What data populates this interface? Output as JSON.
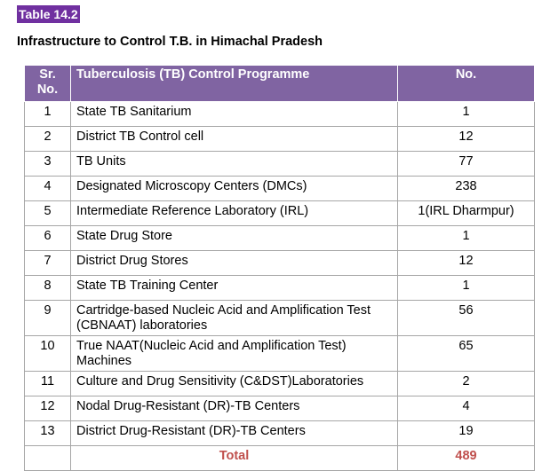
{
  "table_tag": "Table 14.2",
  "heading": "Infrastructure to Control T.B. in Himachal Pradesh",
  "columns": {
    "sr": "Sr.\nNo.",
    "programme": "Tuberculosis (TB) Control Programme",
    "no": "No."
  },
  "rows": [
    {
      "sr": "1",
      "name": "State TB Sanitarium",
      "no": "1"
    },
    {
      "sr": "2",
      "name": "District TB Control cell",
      "no": "12"
    },
    {
      "sr": "3",
      "name": "TB Units",
      "no": "77"
    },
    {
      "sr": "4",
      "name": "Designated Microscopy Centers (DMCs)",
      "no": "238"
    },
    {
      "sr": "5",
      "name": "Intermediate Reference Laboratory (IRL)",
      "no": "1(IRL Dharmpur)"
    },
    {
      "sr": "6",
      "name": "State Drug Store",
      "no": "1"
    },
    {
      "sr": "7",
      "name": "District Drug Stores",
      "no": "12"
    },
    {
      "sr": "8",
      "name": "State TB Training Center",
      "no": "1"
    },
    {
      "sr": "9",
      "name": "Cartridge-based Nucleic Acid and Amplification Test (CBNAAT) laboratories",
      "no": "56"
    },
    {
      "sr": "10",
      "name": "True NAAT(Nucleic Acid and Amplification Test) Machines",
      "no": "65"
    },
    {
      "sr": "11",
      "name": "Culture and Drug Sensitivity (C&DST)Laboratories",
      "no": "2"
    },
    {
      "sr": "12",
      "name": "Nodal  Drug-Resistant (DR)-TB Centers",
      "no": "4"
    },
    {
      "sr": "13",
      "name": "District Drug-Resistant (DR)-TB Centers",
      "no": "19"
    }
  ],
  "total": {
    "label": "Total",
    "value": "489"
  },
  "colors": {
    "tag_bg": "#7030a0",
    "header_bg": "#8064a2",
    "total_text": "#c0504d"
  }
}
